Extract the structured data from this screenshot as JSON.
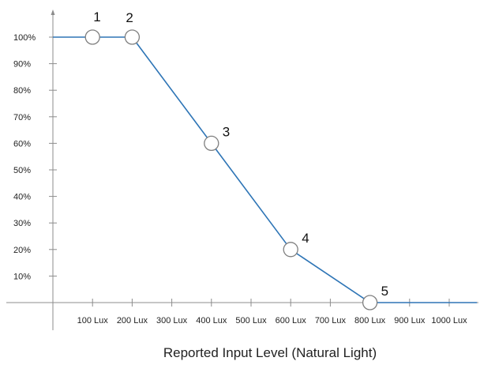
{
  "chart_data": {
    "type": "line",
    "title": "",
    "xlabel": "Reported Input Level (Natural Light)",
    "ylabel": "",
    "x_unit": "Lux",
    "y_unit": "%",
    "xlim": [
      0,
      1000
    ],
    "ylim": [
      0,
      100
    ],
    "x_ticks": [
      {
        "value": 100,
        "label": "100 Lux"
      },
      {
        "value": 200,
        "label": "200 Lux"
      },
      {
        "value": 300,
        "label": "300 Lux"
      },
      {
        "value": 400,
        "label": "400 Lux"
      },
      {
        "value": 500,
        "label": "500 Lux"
      },
      {
        "value": 600,
        "label": "600 Lux"
      },
      {
        "value": 700,
        "label": "700 Lux"
      },
      {
        "value": 800,
        "label": "800 Lux"
      },
      {
        "value": 900,
        "label": "900 Lux"
      },
      {
        "value": 1000,
        "label": "1000 Lux"
      }
    ],
    "y_ticks": [
      {
        "value": 10,
        "label": "10%"
      },
      {
        "value": 20,
        "label": "20%"
      },
      {
        "value": 30,
        "label": "30%"
      },
      {
        "value": 40,
        "label": "40%"
      },
      {
        "value": 50,
        "label": "50%"
      },
      {
        "value": 60,
        "label": "60%"
      },
      {
        "value": 70,
        "label": "70%"
      },
      {
        "value": 80,
        "label": "80%"
      },
      {
        "value": 90,
        "label": "90%"
      },
      {
        "value": 100,
        "label": "100%"
      }
    ],
    "series": [
      {
        "line": [
          {
            "x": 0,
            "y": 100
          },
          {
            "x": 100,
            "y": 100
          },
          {
            "x": 200,
            "y": 100
          },
          {
            "x": 400,
            "y": 60
          },
          {
            "x": 600,
            "y": 20
          },
          {
            "x": 800,
            "y": 0
          },
          {
            "x": 1070,
            "y": 0
          }
        ],
        "points": [
          {
            "label": "1",
            "x": 100,
            "y": 100
          },
          {
            "label": "2",
            "x": 200,
            "y": 100
          },
          {
            "label": "3",
            "x": 400,
            "y": 60
          },
          {
            "label": "4",
            "x": 600,
            "y": 20
          },
          {
            "label": "5",
            "x": 800,
            "y": 0
          }
        ]
      }
    ],
    "grid": false,
    "legend": "none",
    "colors": {
      "line": "#2e75b6",
      "axis": "#8c8c8c",
      "point_fill": "#ffffff",
      "point_stroke": "#7f7f7f"
    }
  }
}
